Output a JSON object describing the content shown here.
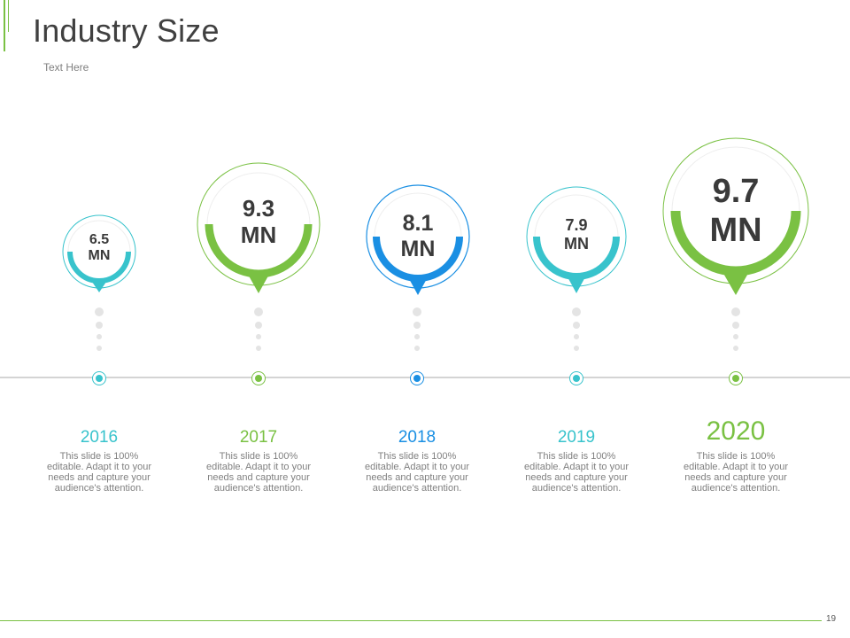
{
  "slide": {
    "title": "Industry Size",
    "subtitle": "Text Here",
    "page_number": "19"
  },
  "colors": {
    "green": "#7ac143",
    "blue": "#1a8fe3",
    "teal": "#38c3cc",
    "text_dark": "#3a3a3a",
    "text_gray": "#808080"
  },
  "timeline": [
    {
      "year": "2016",
      "value_number": "6.5",
      "value_unit": "MN",
      "color": "#38c3cc",
      "description": "This slide is 100% editable. Adapt it to your needs and capture your audience's attention."
    },
    {
      "year": "2017",
      "value_number": "9.3",
      "value_unit": "MN",
      "color": "#7ac143",
      "description": "This slide is 100% editable. Adapt it to your needs and capture your audience's attention."
    },
    {
      "year": "2018",
      "value_number": "8.1",
      "value_unit": "MN",
      "color": "#1a8fe3",
      "description": "This slide is 100% editable. Adapt it to your needs and capture your audience's attention."
    },
    {
      "year": "2019",
      "value_number": "7.9",
      "value_unit": "MN",
      "color": "#38c3cc",
      "description": "This slide is 100% editable. Adapt it to your needs and capture your audience's attention."
    },
    {
      "year": "2020",
      "value_number": "9.7",
      "value_unit": "MN",
      "color": "#7ac143",
      "description": "This slide is 100% editable. Adapt it to your needs and capture your audience's attention."
    }
  ]
}
